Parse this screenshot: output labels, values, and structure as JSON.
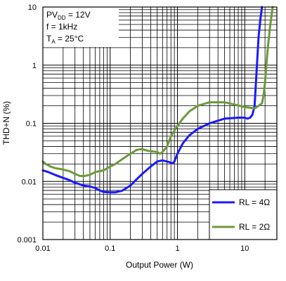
{
  "chart_data": {
    "type": "line",
    "title": "",
    "xlabel": "Output Power (W)",
    "ylabel": "THD+N (%)",
    "x_scale": "log",
    "y_scale": "log",
    "xlim": [
      0.01,
      30
    ],
    "ylim": [
      0.001,
      10
    ],
    "grid": true,
    "x_ticks": [
      {
        "value": 0.01,
        "label": "0.01"
      },
      {
        "value": 0.1,
        "label": "0.1"
      },
      {
        "value": 1,
        "label": "1"
      },
      {
        "value": 10,
        "label": "10"
      }
    ],
    "y_ticks": [
      {
        "value": 0.001,
        "label": "0.001"
      },
      {
        "value": 0.01,
        "label": "0.01"
      },
      {
        "value": 0.1,
        "label": "0.1"
      },
      {
        "value": 1,
        "label": "1"
      },
      {
        "value": 10,
        "label": "10"
      }
    ],
    "conditions": {
      "pvdd_main": "PV",
      "pvdd_sub": "DD",
      "pvdd_value": " = 12V",
      "freq": "f = 1kHz",
      "ta_main": "T",
      "ta_sub": "A",
      "ta_value": " = 25°C"
    },
    "legend_position": "bottom-right",
    "series": [
      {
        "name": "RL = 4Ω",
        "color": "#1a1aff",
        "points": [
          [
            0.01,
            0.0155
          ],
          [
            0.012,
            0.0145
          ],
          [
            0.015,
            0.013
          ],
          [
            0.02,
            0.0115
          ],
          [
            0.025,
            0.0105
          ],
          [
            0.03,
            0.0095
          ],
          [
            0.04,
            0.0085
          ],
          [
            0.05,
            0.0082
          ],
          [
            0.06,
            0.0077
          ],
          [
            0.07,
            0.007
          ],
          [
            0.08,
            0.0066
          ],
          [
            0.1,
            0.0065
          ],
          [
            0.12,
            0.0065
          ],
          [
            0.15,
            0.0069
          ],
          [
            0.2,
            0.0085
          ],
          [
            0.25,
            0.011
          ],
          [
            0.3,
            0.0135
          ],
          [
            0.4,
            0.018
          ],
          [
            0.5,
            0.022
          ],
          [
            0.6,
            0.023
          ],
          [
            0.7,
            0.022
          ],
          [
            0.8,
            0.021
          ],
          [
            0.85,
            0.0205
          ],
          [
            0.9,
            0.022
          ],
          [
            1.0,
            0.03
          ],
          [
            1.2,
            0.045
          ],
          [
            1.5,
            0.062
          ],
          [
            2,
            0.08
          ],
          [
            3,
            0.1
          ],
          [
            5,
            0.12
          ],
          [
            8,
            0.125
          ],
          [
            10,
            0.125
          ],
          [
            11,
            0.12
          ],
          [
            12,
            0.125
          ],
          [
            13,
            0.14
          ],
          [
            14,
            0.2
          ],
          [
            15,
            0.8
          ],
          [
            16,
            3
          ],
          [
            17,
            6
          ],
          [
            18,
            10
          ]
        ]
      },
      {
        "name": "RL = 2Ω",
        "color": "#6b9a3a",
        "points": [
          [
            0.01,
            0.022
          ],
          [
            0.011,
            0.02
          ],
          [
            0.013,
            0.018
          ],
          [
            0.015,
            0.017
          ],
          [
            0.02,
            0.016
          ],
          [
            0.025,
            0.015
          ],
          [
            0.03,
            0.0135
          ],
          [
            0.035,
            0.0125
          ],
          [
            0.04,
            0.0123
          ],
          [
            0.05,
            0.013
          ],
          [
            0.06,
            0.0145
          ],
          [
            0.08,
            0.0155
          ],
          [
            0.1,
            0.018
          ],
          [
            0.12,
            0.02
          ],
          [
            0.15,
            0.024
          ],
          [
            0.2,
            0.03
          ],
          [
            0.25,
            0.035
          ],
          [
            0.3,
            0.036
          ],
          [
            0.35,
            0.034
          ],
          [
            0.4,
            0.033
          ],
          [
            0.5,
            0.032
          ],
          [
            0.55,
            0.03
          ],
          [
            0.6,
            0.032
          ],
          [
            0.7,
            0.04
          ],
          [
            0.8,
            0.06
          ],
          [
            0.9,
            0.075
          ],
          [
            1.0,
            0.09
          ],
          [
            1.2,
            0.12
          ],
          [
            1.5,
            0.16
          ],
          [
            2,
            0.2
          ],
          [
            3,
            0.23
          ],
          [
            5,
            0.23
          ],
          [
            7,
            0.21
          ],
          [
            10,
            0.19
          ],
          [
            12,
            0.185
          ],
          [
            14,
            0.18
          ],
          [
            16,
            0.2
          ],
          [
            18,
            0.22
          ],
          [
            19,
            0.3
          ],
          [
            20,
            0.5
          ],
          [
            22,
            2
          ],
          [
            24,
            5
          ],
          [
            26,
            10
          ]
        ]
      }
    ]
  }
}
